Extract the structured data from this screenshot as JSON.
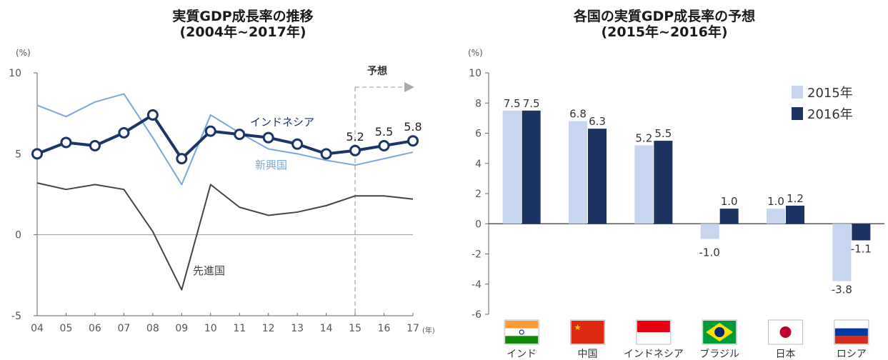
{
  "left_chart": {
    "title": "実質GDP成長率の推移",
    "subtitle": "(2004年~2017年)",
    "y_unit": "(%)",
    "x_unit": "(年)",
    "forecast_label": "予想",
    "labels": {
      "indonesia": "インドネシア",
      "emerging": "新興国",
      "advanced": "先進国"
    }
  },
  "right_chart": {
    "title": "各国の実質GDP成長率の予想",
    "subtitle": "(2015年~2016年)",
    "y_unit": "(%)"
  },
  "chart_data": [
    {
      "type": "line",
      "title": "実質GDP成長率の推移",
      "subtitle": "(2004年~2017年)",
      "xlabel": "(年)",
      "ylabel": "(%)",
      "x": [
        "04",
        "05",
        "06",
        "07",
        "08",
        "09",
        "10",
        "11",
        "12",
        "13",
        "14",
        "15",
        "16",
        "17"
      ],
      "ylim": [
        -5,
        10
      ],
      "yticks": [
        -5,
        0,
        5,
        10
      ],
      "forecast_from": "15",
      "series": [
        {
          "name": "インドネシア",
          "color": "#1b3566",
          "values": [
            5.0,
            5.7,
            5.5,
            6.3,
            7.4,
            4.7,
            6.4,
            6.2,
            6.0,
            5.6,
            5.0,
            5.2,
            5.5,
            5.8
          ],
          "data_labels": {
            "15": "5.2",
            "16": "5.5",
            "17": "5.8"
          }
        },
        {
          "name": "新興国",
          "color": "#7ba7dc",
          "values": [
            8.0,
            7.3,
            8.2,
            8.7,
            6.0,
            3.1,
            7.4,
            6.3,
            5.3,
            5.0,
            4.6,
            4.3,
            4.7,
            5.1
          ]
        },
        {
          "name": "先進国",
          "color": "#444444",
          "values": [
            3.2,
            2.8,
            3.1,
            2.8,
            0.2,
            -3.4,
            3.1,
            1.7,
            1.2,
            1.4,
            1.8,
            2.4,
            2.4,
            2.2
          ]
        }
      ]
    },
    {
      "type": "bar",
      "title": "各国の実質GDP成長率の予想",
      "subtitle": "(2015年~2016年)",
      "ylabel": "(%)",
      "categories": [
        "インド",
        "中国",
        "インドネシア",
        "ブラジル",
        "日本",
        "ロシア"
      ],
      "ylim": [
        -6,
        10
      ],
      "yticks": [
        -6,
        -4,
        -2,
        0,
        2,
        4,
        6,
        8,
        10
      ],
      "legend_position": "top-right",
      "series": [
        {
          "name": "2015年",
          "color": "#c7d6ee",
          "values": [
            7.5,
            6.8,
            5.2,
            -1.0,
            1.0,
            -3.8
          ],
          "labels": [
            "7.5",
            "6.8",
            "5.2",
            "",
            "1.0",
            "-3.8"
          ]
        },
        {
          "name": "2016年",
          "color": "#1c3461",
          "values": [
            7.5,
            6.3,
            5.5,
            1.0,
            1.2,
            -1.1
          ],
          "labels": [
            "7.5",
            "6.3",
            "5.5",
            "1.0",
            "1.2",
            "-1.1"
          ]
        }
      ],
      "extra_labels": [
        {
          "category": "ブラジル",
          "text": "-1.0"
        }
      ]
    }
  ]
}
